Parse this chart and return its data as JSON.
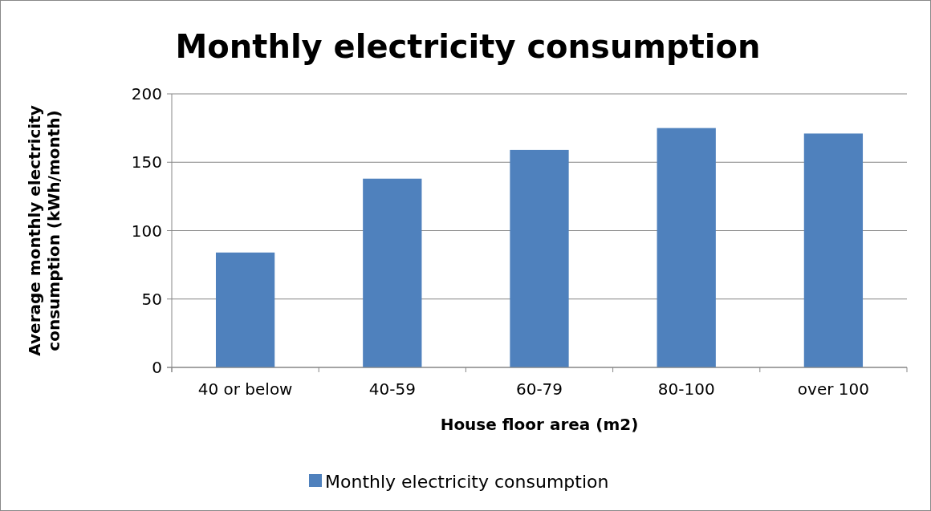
{
  "chart_data": {
    "type": "bar",
    "title": "Monthly electricity consumption",
    "xlabel": "House floor area (m2)",
    "ylabel": "Average monthly electricity consumption (kWh/month)",
    "categories": [
      "40 or below",
      "40-59",
      "60-79",
      "80-100",
      "over 100"
    ],
    "series": [
      {
        "name": "Monthly electricity consumption",
        "color": "#4f81bd",
        "values": [
          84,
          138,
          159,
          175,
          171
        ]
      }
    ],
    "ylim": [
      0,
      200
    ],
    "yticks": [
      0,
      50,
      100,
      150,
      200
    ],
    "grid": "y",
    "legend": "bottom"
  }
}
